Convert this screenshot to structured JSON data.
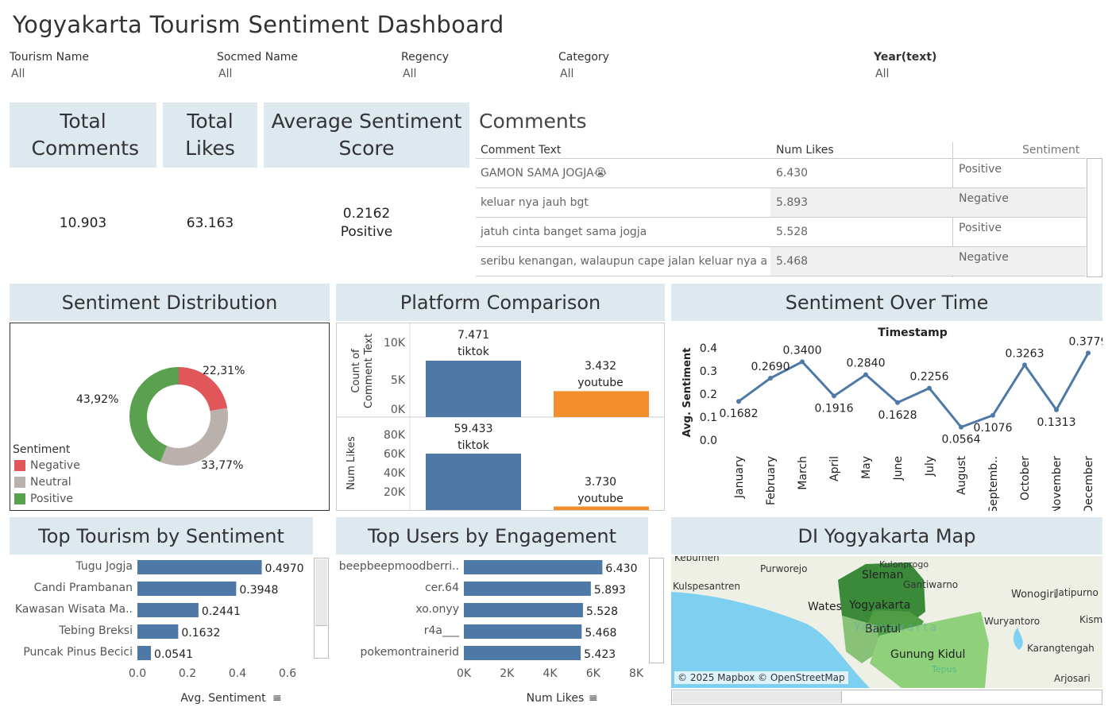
{
  "title": "Yogyakarta Tourism Sentiment Dashboard",
  "filters": [
    {
      "label": "Tourism Name",
      "value": "All"
    },
    {
      "label": "Socmed Name",
      "value": "All"
    },
    {
      "label": "Regency",
      "value": "All"
    },
    {
      "label": "Category",
      "value": "All"
    },
    {
      "label": "Year(text)",
      "value": "All"
    }
  ],
  "kpis": {
    "total_comments_label": "Total Comments",
    "total_comments": "10.903",
    "total_likes_label": "Total Likes",
    "total_likes": "63.163",
    "avg_sentiment_label": "Average Sentiment Score",
    "avg_sentiment": "0.2162",
    "avg_sentiment_class": "Positive"
  },
  "comments": {
    "title": "Comments",
    "headers": {
      "text": "Comment Text",
      "likes": "Num Likes",
      "sentiment": "Sentiment"
    },
    "rows": [
      {
        "text": "GAMON SAMA JOGJA😭",
        "likes": "6.430",
        "sentiment": "Positive"
      },
      {
        "text": "keluar nya jauh bgt",
        "likes": "5.893",
        "sentiment": "Negative"
      },
      {
        "text": "jatuh cinta banget sama jogja",
        "likes": "5.528",
        "sentiment": "Positive"
      },
      {
        "text": "seribu kenangan, walaupun cape jalan keluar nya a..",
        "likes": "5.468",
        "sentiment": "Negative"
      }
    ]
  },
  "sentiment_distribution": {
    "title": "Sentiment Distribution",
    "legend_title": "Sentiment",
    "labels": {
      "negative": "22,31%",
      "neutral": "33,77%",
      "positive": "43,92%"
    },
    "legend": [
      "Negative",
      "Neutral",
      "Positive"
    ],
    "colors": {
      "negative": "#e15759",
      "neutral": "#bab0ac",
      "positive": "#59a14f"
    }
  },
  "platform": {
    "title": "Platform Comparison",
    "ylabel_top": "Count of Comment Text",
    "ylabel_bottom": "Num Likes",
    "top_ticks": [
      "10K",
      "5K",
      "0K"
    ],
    "bottom_ticks": [
      "80K",
      "60K",
      "40K",
      "20K"
    ],
    "tiktok_label": "tiktok",
    "youtube_label": "youtube",
    "tiktok_count": "7.471",
    "youtube_count": "3.432",
    "tiktok_likes": "59.433",
    "youtube_likes": "3.730",
    "colors": {
      "tiktok": "#4e79a7",
      "youtube": "#f28e2b"
    }
  },
  "chart_data": [
    {
      "type": "pie",
      "title": "Sentiment Distribution",
      "categories": [
        "Negative",
        "Neutral",
        "Positive"
      ],
      "values": [
        22.31,
        33.77,
        43.92
      ]
    },
    {
      "type": "bar",
      "title": "Platform Comparison",
      "categories": [
        "tiktok",
        "youtube"
      ],
      "series": [
        {
          "name": "Count of Comment Text",
          "values": [
            7471,
            3432
          ]
        },
        {
          "name": "Num Likes",
          "values": [
            59433,
            3730
          ]
        }
      ]
    },
    {
      "type": "line",
      "title": "Sentiment Over Time",
      "xlabel": "Timestamp",
      "ylabel": "Avg. Sentiment",
      "ylim": [
        0,
        0.4
      ],
      "y_ticks": [
        "0.4",
        "0.3",
        "0.2",
        "0.1",
        "0.0"
      ],
      "x": [
        "January",
        "February",
        "March",
        "April",
        "May",
        "June",
        "July",
        "August",
        "Septemb..",
        "October",
        "November",
        "December"
      ],
      "values": [
        0.1682,
        0.269,
        0.34,
        0.1916,
        0.284,
        0.1628,
        0.2256,
        0.0564,
        0.1076,
        0.3263,
        0.1313,
        0.3779
      ],
      "value_labels": [
        "0.1682",
        "0.2690",
        "0.3400",
        "0.1916",
        "0.2840",
        "0.1628",
        "0.2256",
        "0.0564",
        "0.1076",
        "0.3263",
        "0.1313",
        "0.3779"
      ]
    },
    {
      "type": "bar",
      "title": "Top Tourism by Sentiment",
      "xlabel": "Avg. Sentiment",
      "xlim": [
        0,
        0.6
      ],
      "x_ticks": [
        "0.0",
        "0.2",
        "0.4",
        "0.6"
      ],
      "categories": [
        "Tugu Jogja",
        "Candi Prambanan",
        "Kawasan Wisata Ma..",
        "Tebing Breksi",
        "Puncak Pinus Becici"
      ],
      "values": [
        0.497,
        0.3948,
        0.2441,
        0.1632,
        0.0541
      ],
      "value_labels": [
        "0.4970",
        "0.3948",
        "0.2441",
        "0.1632",
        "0.0541"
      ]
    },
    {
      "type": "bar",
      "title": "Top Users by Engagement",
      "xlabel": "Num Likes",
      "xlim": [
        0,
        8000
      ],
      "x_ticks": [
        "0K",
        "2K",
        "4K",
        "6K",
        "8K"
      ],
      "categories": [
        "beepbeepmoodberri..",
        "cer.64",
        "xo.onyy",
        "r4a___",
        "pokemontrainerid"
      ],
      "values": [
        6430,
        5893,
        5528,
        5468,
        5423
      ],
      "value_labels": [
        "6.430",
        "5.893",
        "5.528",
        "5.468",
        "5.423"
      ]
    }
  ],
  "sentiment_over_time": {
    "title": "Sentiment Over Time",
    "color": "#4e79a7"
  },
  "top_tourism": {
    "title": "Top Tourism by Sentiment"
  },
  "top_users": {
    "title": "Top Users by Engagement"
  },
  "map": {
    "title": "DI Yogyakarta Map",
    "attribution": "© 2025 Mapbox © OpenStreetMap",
    "places": [
      "Kebumen",
      "Purworejo",
      "Sleman",
      "Kulonprogo",
      "Gantiwarno",
      "Wonogiri",
      "Jatipurno",
      "Kulspesantren",
      "Wates",
      "Yogyakarta",
      "Bantul",
      "Wuryantoro",
      "Kism",
      "Gunung Kidul",
      "Karangtengah",
      "Tepus",
      "Arjosari",
      "Yogyakarta"
    ]
  }
}
